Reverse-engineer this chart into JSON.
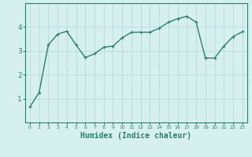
{
  "x": [
    0,
    1,
    2,
    3,
    4,
    5,
    6,
    7,
    8,
    9,
    10,
    11,
    12,
    13,
    14,
    15,
    16,
    17,
    18,
    19,
    20,
    21,
    22,
    23
  ],
  "y": [
    0.65,
    1.25,
    3.25,
    3.7,
    3.82,
    3.25,
    2.72,
    2.88,
    3.15,
    3.2,
    3.55,
    3.78,
    3.78,
    3.78,
    3.95,
    4.2,
    4.35,
    4.45,
    4.2,
    2.7,
    2.7,
    3.2,
    3.6,
    3.8
  ],
  "line_color": "#2e7d6e",
  "marker": "+",
  "bg_color": "#d6f0f0",
  "grid_color": "#c0dede",
  "axis_color": "#2e7d6e",
  "tick_color": "#2e7d6e",
  "xlabel": "Humidex (Indice chaleur)",
  "xlabel_fontsize": 7,
  "ylim": [
    0,
    5
  ],
  "xlim": [
    -0.5,
    23.5
  ],
  "yticks": [
    1,
    2,
    3,
    4
  ],
  "xtick_labels": [
    "0",
    "1",
    "2",
    "3",
    "4",
    "5",
    "6",
    "7",
    "8",
    "9",
    "10",
    "11",
    "12",
    "13",
    "14",
    "15",
    "16",
    "17",
    "18",
    "19",
    "20",
    "21",
    "22",
    "23"
  ],
  "linewidth": 1.0,
  "markersize": 3,
  "markeredgewidth": 0.8
}
